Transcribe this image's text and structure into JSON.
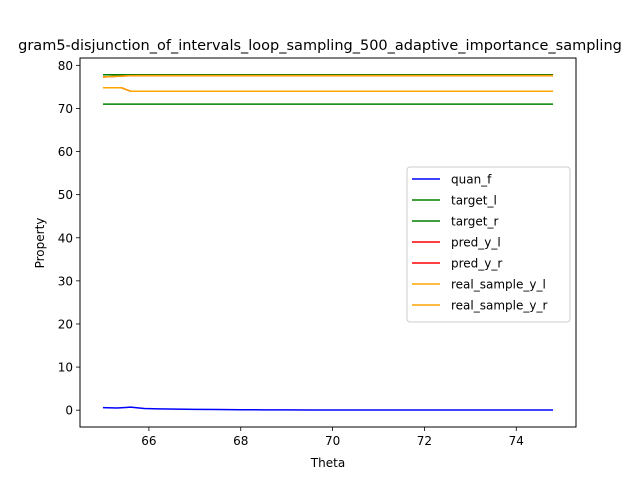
{
  "chart_data": {
    "type": "line",
    "title": "gram5-disjunction_of_intervals_loop_sampling_500_adaptive_importance_sampling",
    "xlabel": "Theta",
    "ylabel": "Property",
    "xlim": [
      64.5,
      75.3
    ],
    "ylim": [
      -3.9,
      81.7
    ],
    "xticks": [
      66,
      68,
      70,
      72,
      74
    ],
    "yticks": [
      0,
      10,
      20,
      30,
      40,
      50,
      60,
      70,
      80
    ],
    "grid": false,
    "legend_position": "center-right",
    "series": [
      {
        "name": "quan_f",
        "color": "#0000ff",
        "x": [
          65.0,
          65.3,
          65.6,
          65.9,
          66.2,
          66.6,
          67.0,
          67.5,
          68.0,
          68.5,
          69.0,
          69.5,
          70.0,
          70.5,
          71.0,
          71.5,
          72.0,
          72.5,
          73.0,
          73.5,
          74.0,
          74.5,
          74.8
        ],
        "y": [
          0.6,
          0.5,
          0.7,
          0.4,
          0.3,
          0.25,
          0.2,
          0.15,
          0.1,
          0.08,
          0.06,
          0.05,
          0.04,
          0.05,
          0.05,
          0.05,
          0.05,
          0.05,
          0.05,
          0.05,
          0.05,
          0.05,
          0.05
        ]
      },
      {
        "name": "target_l",
        "color": "#008000",
        "x": [
          65.0,
          74.8
        ],
        "y": [
          71.0,
          71.0
        ]
      },
      {
        "name": "target_r",
        "color": "#008000",
        "x": [
          65.0,
          74.8
        ],
        "y": [
          77.8,
          77.8
        ]
      },
      {
        "name": "pred_y_l",
        "color": "#ff0000",
        "x": [
          65.0,
          65.4,
          65.6,
          74.8
        ],
        "y": [
          74.8,
          74.8,
          74.0,
          74.0
        ]
      },
      {
        "name": "pred_y_r",
        "color": "#ff0000",
        "x": [
          65.0,
          65.6,
          74.8
        ],
        "y": [
          77.3,
          77.6,
          77.6
        ]
      },
      {
        "name": "real_sample_y_l",
        "color": "#ffa500",
        "x": [
          65.0,
          65.4,
          65.6,
          74.8
        ],
        "y": [
          74.8,
          74.8,
          74.0,
          74.0
        ]
      },
      {
        "name": "real_sample_y_r",
        "color": "#ffa500",
        "x": [
          65.0,
          65.6,
          74.8
        ],
        "y": [
          77.3,
          77.6,
          77.6
        ]
      }
    ]
  }
}
